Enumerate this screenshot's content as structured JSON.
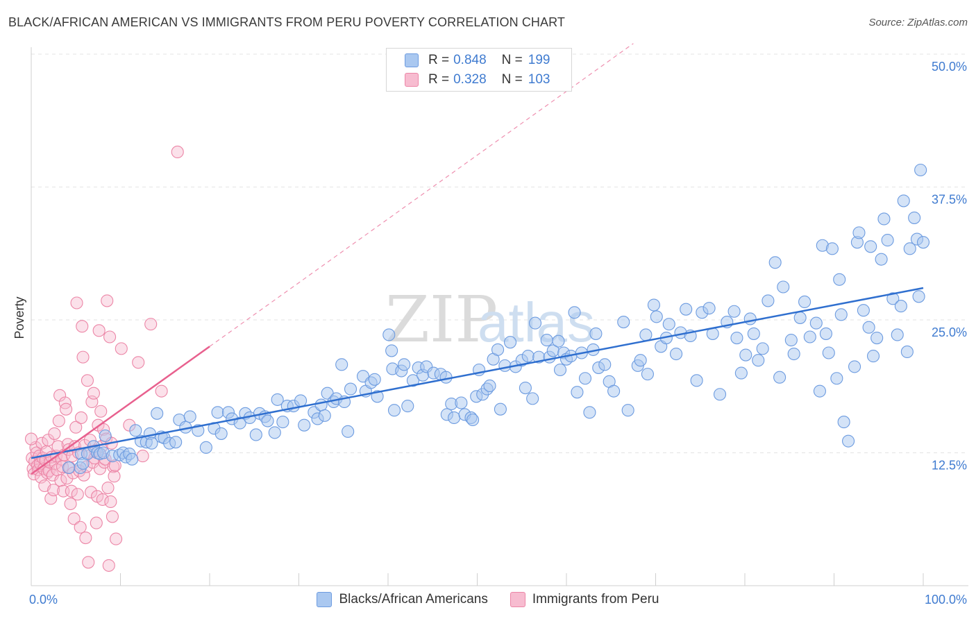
{
  "title": "BLACK/AFRICAN AMERICAN VS IMMIGRANTS FROM PERU POVERTY CORRELATION CHART",
  "source": "Source: ZipAtlas.com",
  "watermark": {
    "zip": "ZIP",
    "atlas": "atlas"
  },
  "legend": {
    "rows": [
      {
        "r_label": "R =",
        "r_value": "0.848",
        "n_label": "N =",
        "n_value": "199"
      },
      {
        "r_label": "R =",
        "r_value": "0.328",
        "n_label": "N =",
        "n_value": "103"
      }
    ]
  },
  "colors": {
    "blue_fill": "#aac8f0",
    "blue_stroke": "#6c9be0",
    "blue_line": "#2f6fcf",
    "pink_fill": "#f7bcd0",
    "pink_stroke": "#ec85a6",
    "pink_line": "#e8608e",
    "axis_text": "#3f7bd0"
  },
  "chart_data": {
    "type": "scatter",
    "title": "BLACK/AFRICAN AMERICAN VS IMMIGRANTS FROM PERU POVERTY CORRELATION CHART",
    "xlabel": "",
    "ylabel": "Poverty",
    "xlim": [
      0,
      100
    ],
    "ylim": [
      0,
      50
    ],
    "x_tick_labels": [
      "0.0%",
      "100.0%"
    ],
    "y_ticks": [
      12.5,
      25.0,
      37.5,
      50.0
    ],
    "y_tick_labels": [
      "12.5%",
      "25.0%",
      "37.5%",
      "50.0%"
    ],
    "grid": true,
    "series": [
      {
        "name": "Blacks/African Americans",
        "color": "blue",
        "trend": {
          "x": [
            0,
            100
          ],
          "y": [
            12.0,
            28.0
          ]
        },
        "points": [
          [
            4.2,
            11.1
          ],
          [
            5.5,
            11.1
          ],
          [
            5.6,
            12.4
          ],
          [
            5.8,
            11.5
          ],
          [
            6.3,
            12.4
          ],
          [
            7.0,
            13.1
          ],
          [
            7.4,
            12.5
          ],
          [
            7.7,
            12.4
          ],
          [
            8.1,
            12.5
          ],
          [
            8.3,
            14.1
          ],
          [
            9.1,
            12.2
          ],
          [
            9.9,
            12.3
          ],
          [
            10.3,
            12.5
          ],
          [
            10.6,
            12.1
          ],
          [
            11.0,
            12.4
          ],
          [
            11.3,
            11.9
          ],
          [
            11.7,
            14.6
          ],
          [
            12.3,
            13.6
          ],
          [
            12.9,
            13.5
          ],
          [
            13.3,
            14.3
          ],
          [
            13.5,
            13.4
          ],
          [
            14.1,
            16.2
          ],
          [
            14.6,
            14.0
          ],
          [
            14.9,
            13.9
          ],
          [
            15.5,
            13.4
          ],
          [
            16.2,
            13.5
          ],
          [
            16.6,
            15.6
          ],
          [
            17.3,
            14.9
          ],
          [
            17.8,
            15.9
          ],
          [
            18.7,
            14.6
          ],
          [
            19.6,
            13.0
          ],
          [
            20.5,
            14.8
          ],
          [
            20.9,
            16.3
          ],
          [
            21.3,
            14.3
          ],
          [
            22.1,
            16.3
          ],
          [
            22.5,
            15.7
          ],
          [
            23.4,
            15.3
          ],
          [
            24.0,
            16.2
          ],
          [
            24.5,
            15.8
          ],
          [
            25.2,
            14.2
          ],
          [
            25.6,
            16.2
          ],
          [
            26.2,
            15.9
          ],
          [
            26.5,
            15.5
          ],
          [
            27.3,
            14.4
          ],
          [
            27.6,
            17.5
          ],
          [
            28.2,
            15.4
          ],
          [
            28.7,
            16.9
          ],
          [
            29.4,
            16.9
          ],
          [
            30.2,
            17.4
          ],
          [
            30.6,
            15.1
          ],
          [
            31.7,
            16.3
          ],
          [
            32.1,
            15.7
          ],
          [
            32.5,
            17.0
          ],
          [
            32.9,
            16.0
          ],
          [
            33.2,
            18.1
          ],
          [
            33.9,
            17.3
          ],
          [
            34.2,
            17.6
          ],
          [
            34.8,
            20.8
          ],
          [
            35.1,
            17.3
          ],
          [
            35.5,
            14.5
          ],
          [
            35.8,
            18.5
          ],
          [
            37.2,
            19.7
          ],
          [
            37.5,
            18.3
          ],
          [
            38.1,
            19.1
          ],
          [
            38.5,
            19.4
          ],
          [
            38.8,
            17.8
          ],
          [
            40.1,
            23.6
          ],
          [
            40.4,
            22.1
          ],
          [
            40.5,
            20.4
          ],
          [
            40.7,
            16.5
          ],
          [
            41.5,
            20.2
          ],
          [
            41.8,
            20.8
          ],
          [
            42.2,
            16.9
          ],
          [
            42.8,
            19.3
          ],
          [
            43.4,
            20.5
          ],
          [
            43.9,
            19.8
          ],
          [
            44.3,
            20.6
          ],
          [
            45.1,
            20.0
          ],
          [
            45.9,
            19.9
          ],
          [
            46.5,
            19.6
          ],
          [
            46.6,
            16.1
          ],
          [
            47.1,
            17.1
          ],
          [
            47.4,
            15.8
          ],
          [
            48.2,
            17.2
          ],
          [
            48.6,
            16.1
          ],
          [
            49.3,
            15.8
          ],
          [
            49.5,
            15.6
          ],
          [
            49.9,
            17.8
          ],
          [
            50.2,
            20.3
          ],
          [
            50.6,
            18.0
          ],
          [
            51.1,
            18.5
          ],
          [
            51.4,
            18.8
          ],
          [
            51.8,
            21.3
          ],
          [
            52.3,
            22.2
          ],
          [
            52.6,
            16.6
          ],
          [
            53.1,
            20.7
          ],
          [
            53.7,
            22.9
          ],
          [
            54.3,
            20.6
          ],
          [
            55.0,
            21.2
          ],
          [
            55.4,
            18.6
          ],
          [
            55.7,
            21.6
          ],
          [
            56.2,
            17.6
          ],
          [
            56.5,
            24.7
          ],
          [
            56.9,
            21.5
          ],
          [
            57.8,
            23.1
          ],
          [
            58.1,
            21.5
          ],
          [
            58.5,
            22.1
          ],
          [
            59.1,
            23.0
          ],
          [
            59.3,
            20.3
          ],
          [
            59.7,
            21.9
          ],
          [
            60.0,
            21.3
          ],
          [
            60.5,
            21.6
          ],
          [
            60.9,
            25.7
          ],
          [
            61.2,
            18.2
          ],
          [
            61.7,
            21.9
          ],
          [
            62.1,
            19.5
          ],
          [
            62.6,
            16.3
          ],
          [
            63.0,
            22.2
          ],
          [
            63.3,
            23.7
          ],
          [
            63.6,
            20.5
          ],
          [
            64.3,
            20.8
          ],
          [
            64.8,
            19.2
          ],
          [
            65.3,
            18.3
          ],
          [
            66.4,
            24.8
          ],
          [
            66.9,
            16.5
          ],
          [
            68.0,
            20.7
          ],
          [
            68.3,
            21.2
          ],
          [
            68.9,
            23.6
          ],
          [
            69.1,
            19.9
          ],
          [
            69.8,
            26.4
          ],
          [
            70.1,
            25.3
          ],
          [
            70.6,
            22.5
          ],
          [
            71.2,
            23.3
          ],
          [
            71.5,
            24.6
          ],
          [
            72.3,
            21.8
          ],
          [
            72.8,
            23.8
          ],
          [
            73.4,
            26.0
          ],
          [
            73.9,
            23.5
          ],
          [
            74.6,
            19.3
          ],
          [
            75.2,
            25.7
          ],
          [
            76.0,
            26.1
          ],
          [
            76.4,
            23.7
          ],
          [
            77.2,
            18.0
          ],
          [
            78.0,
            24.8
          ],
          [
            78.8,
            25.8
          ],
          [
            79.1,
            23.3
          ],
          [
            79.6,
            20.0
          ],
          [
            80.1,
            21.7
          ],
          [
            80.6,
            25.1
          ],
          [
            81.0,
            23.7
          ],
          [
            81.5,
            21.2
          ],
          [
            82.0,
            22.3
          ],
          [
            82.6,
            26.8
          ],
          [
            83.4,
            30.4
          ],
          [
            83.9,
            19.6
          ],
          [
            84.3,
            28.1
          ],
          [
            85.2,
            23.1
          ],
          [
            85.5,
            21.8
          ],
          [
            86.2,
            25.2
          ],
          [
            86.7,
            26.7
          ],
          [
            87.3,
            23.4
          ],
          [
            88.0,
            24.7
          ],
          [
            88.4,
            18.3
          ],
          [
            88.7,
            32.0
          ],
          [
            89.1,
            23.7
          ],
          [
            89.4,
            21.9
          ],
          [
            90.3,
            19.5
          ],
          [
            90.8,
            25.5
          ],
          [
            91.1,
            15.4
          ],
          [
            91.6,
            13.6
          ],
          [
            92.3,
            20.6
          ],
          [
            92.6,
            32.3
          ],
          [
            93.3,
            25.9
          ],
          [
            93.9,
            24.3
          ],
          [
            94.4,
            21.6
          ],
          [
            94.8,
            23.3
          ],
          [
            95.3,
            30.7
          ],
          [
            96.0,
            32.5
          ],
          [
            96.6,
            27.0
          ],
          [
            97.1,
            23.6
          ],
          [
            97.5,
            26.3
          ],
          [
            98.2,
            22.0
          ],
          [
            98.5,
            31.7
          ],
          [
            99.0,
            34.6
          ],
          [
            99.3,
            32.6
          ],
          [
            99.7,
            39.1
          ],
          [
            100.0,
            32.3
          ],
          [
            99.5,
            27.2
          ],
          [
            97.8,
            36.2
          ],
          [
            95.6,
            34.5
          ],
          [
            94.1,
            31.9
          ],
          [
            92.8,
            33.2
          ],
          [
            90.6,
            28.8
          ],
          [
            89.8,
            31.7
          ]
        ]
      },
      {
        "name": "Immigrants from Peru",
        "color": "pink",
        "trend": {
          "x": [
            0,
            20
          ],
          "y": [
            10.5,
            22.5
          ]
        },
        "points": [
          [
            0.1,
            12.0
          ],
          [
            0.2,
            11.0
          ],
          [
            0.3,
            10.5
          ],
          [
            0.4,
            11.7
          ],
          [
            0.5,
            13.0
          ],
          [
            0.6,
            12.5
          ],
          [
            0.7,
            11.3
          ],
          [
            0.8,
            10.9
          ],
          [
            0.9,
            12.2
          ],
          [
            1.0,
            11.5
          ],
          [
            1.1,
            10.2
          ],
          [
            1.2,
            13.4
          ],
          [
            1.3,
            12.0
          ],
          [
            1.4,
            11.0
          ],
          [
            1.5,
            9.4
          ],
          [
            1.6,
            11.8
          ],
          [
            1.7,
            12.6
          ],
          [
            1.8,
            10.6
          ],
          [
            1.9,
            13.7
          ],
          [
            2.0,
            10.8
          ],
          [
            2.1,
            11.6
          ],
          [
            2.2,
            8.2
          ],
          [
            2.3,
            12.1
          ],
          [
            2.4,
            10.4
          ],
          [
            2.5,
            9.0
          ],
          [
            2.6,
            14.3
          ],
          [
            2.7,
            11.5
          ],
          [
            2.8,
            12.2
          ],
          [
            2.9,
            10.9
          ],
          [
            3.0,
            13.1
          ],
          [
            3.1,
            15.5
          ],
          [
            3.2,
            17.9
          ],
          [
            3.3,
            9.9
          ],
          [
            3.4,
            11.9
          ],
          [
            3.5,
            11.2
          ],
          [
            3.6,
            8.9
          ],
          [
            3.7,
            12.3
          ],
          [
            3.8,
            17.2
          ],
          [
            3.9,
            16.6
          ],
          [
            4.0,
            10.1
          ],
          [
            4.1,
            13.3
          ],
          [
            4.2,
            12.8
          ],
          [
            4.3,
            11.1
          ],
          [
            4.4,
            7.7
          ],
          [
            4.5,
            8.9
          ],
          [
            4.6,
            12.2
          ],
          [
            4.7,
            10.6
          ],
          [
            4.8,
            6.3
          ],
          [
            4.9,
            13.1
          ],
          [
            5.0,
            14.9
          ],
          [
            5.1,
            26.6
          ],
          [
            5.2,
            8.6
          ],
          [
            5.3,
            12.5
          ],
          [
            5.4,
            10.8
          ],
          [
            5.5,
            5.5
          ],
          [
            5.6,
            15.8
          ],
          [
            5.7,
            24.4
          ],
          [
            5.8,
            21.5
          ],
          [
            5.9,
            10.4
          ],
          [
            6.0,
            13.2
          ],
          [
            6.1,
            4.5
          ],
          [
            6.2,
            11.2
          ],
          [
            6.3,
            19.3
          ],
          [
            6.4,
            2.2
          ],
          [
            6.5,
            12.5
          ],
          [
            6.6,
            13.7
          ],
          [
            6.7,
            8.8
          ],
          [
            6.8,
            17.3
          ],
          [
            6.9,
            11.6
          ],
          [
            7.0,
            18.1
          ],
          [
            7.1,
            12.0
          ],
          [
            7.2,
            12.7
          ],
          [
            7.3,
            5.9
          ],
          [
            7.4,
            8.4
          ],
          [
            7.5,
            15.1
          ],
          [
            7.6,
            24.0
          ],
          [
            7.7,
            11.0
          ],
          [
            7.8,
            16.4
          ],
          [
            7.9,
            13.1
          ],
          [
            8.0,
            8.1
          ],
          [
            8.1,
            14.7
          ],
          [
            8.2,
            11.6
          ],
          [
            8.3,
            11.9
          ],
          [
            8.4,
            13.8
          ],
          [
            8.5,
            26.8
          ],
          [
            8.6,
            9.2
          ],
          [
            8.7,
            1.9
          ],
          [
            8.8,
            23.4
          ],
          [
            8.9,
            7.9
          ],
          [
            9.0,
            13.4
          ],
          [
            9.1,
            6.5
          ],
          [
            9.2,
            11.2
          ],
          [
            9.3,
            10.3
          ],
          [
            9.4,
            11.3
          ],
          [
            9.5,
            4.4
          ],
          [
            10.1,
            22.3
          ],
          [
            11.0,
            15.1
          ],
          [
            12.0,
            21.0
          ],
          [
            12.5,
            12.2
          ],
          [
            13.4,
            24.6
          ],
          [
            14.6,
            18.3
          ],
          [
            16.4,
            40.8
          ],
          [
            0.0,
            13.8
          ]
        ]
      }
    ]
  },
  "bottom_legend": [
    {
      "label": "Blacks/African Americans"
    },
    {
      "label": "Immigrants from Peru"
    }
  ]
}
